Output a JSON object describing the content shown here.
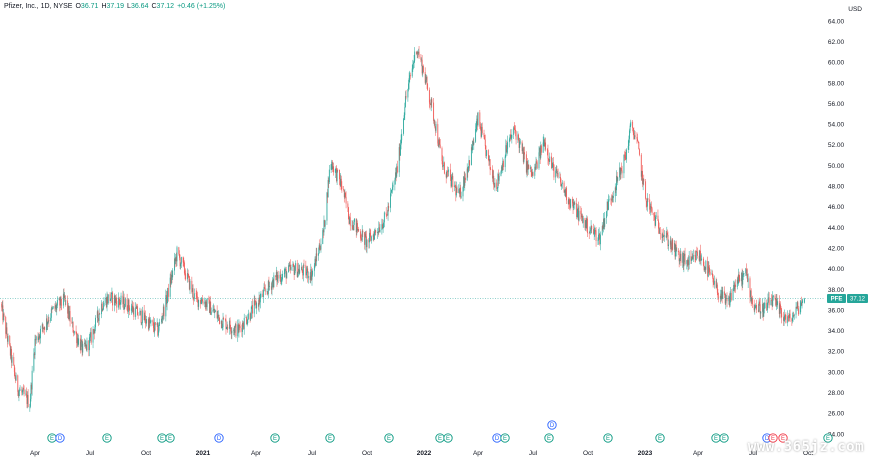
{
  "header": {
    "symbol_line": "Pfizer, Inc., 1D, NYSE",
    "o_label": "O",
    "o_value": "36.71",
    "h_label": "H",
    "h_value": "37.19",
    "l_label": "L",
    "l_value": "36.64",
    "c_label": "C",
    "c_value": "37.12",
    "change": "+0.46 (+1.25%)"
  },
  "price_axis": {
    "currency": "USD",
    "ticks": [
      "64.00",
      "62.00",
      "60.00",
      "58.00",
      "56.00",
      "54.00",
      "52.00",
      "50.00",
      "48.00",
      "46.00",
      "44.00",
      "42.00",
      "40.00",
      "38.00",
      "36.00",
      "34.00",
      "32.00",
      "30.00",
      "28.00",
      "26.00",
      "24.00"
    ]
  },
  "time_axis": {
    "ticks": [
      "Apr",
      "Jul",
      "Oct",
      "2021",
      "Apr",
      "Jul",
      "Oct",
      "2022",
      "Apr",
      "Jul",
      "Oct",
      "2023",
      "Apr",
      "Jul",
      "Oct"
    ]
  },
  "last_price": {
    "symbol": "PFE",
    "value": "37.12"
  },
  "events": [
    {
      "label": "E"
    },
    {
      "label": "D"
    },
    {
      "label": "E"
    },
    {
      "label": "E"
    },
    {
      "label": "E"
    },
    {
      "label": "D"
    },
    {
      "label": "E"
    },
    {
      "label": "E"
    },
    {
      "label": "E"
    },
    {
      "label": "E"
    },
    {
      "label": "E"
    },
    {
      "label": "D"
    },
    {
      "label": "E"
    },
    {
      "label": "E"
    },
    {
      "label": "D"
    },
    {
      "label": "E"
    },
    {
      "label": "E"
    },
    {
      "label": "E"
    },
    {
      "label": "E"
    },
    {
      "label": "D"
    },
    {
      "label": "E"
    },
    {
      "label": "E"
    },
    {
      "label": "E"
    }
  ],
  "watermark": "www.365jz.com",
  "colors": {
    "up": "#26a69a",
    "down": "#ef5350",
    "dividend": "#2962ff",
    "earnings": "#089981",
    "earnings_red": "#f23645",
    "split": "#e040fb"
  },
  "chart_data": {
    "type": "candlestick",
    "title": "Pfizer, Inc., 1D, NYSE",
    "ylim": [
      24,
      64
    ],
    "ylabel": "USD",
    "x_ticks": [
      "Apr",
      "Jul",
      "Oct",
      "2021",
      "Apr",
      "Jul",
      "Oct",
      "2022",
      "Apr",
      "Jul",
      "Oct",
      "2023",
      "Apr",
      "Jul",
      "Oct"
    ],
    "series": [
      {
        "name": "PFE",
        "close_path_approx": [
          [
            "2020-02",
            36.6
          ],
          [
            "2020-03",
            28.5
          ],
          [
            "2020-03-23",
            27.0
          ],
          [
            "2020-04",
            33.0
          ],
          [
            "2020-05",
            36.0
          ],
          [
            "2020-05-20",
            37.0
          ],
          [
            "2020-06",
            34.5
          ],
          [
            "2020-06-20",
            32.0
          ],
          [
            "2020-07",
            33.0
          ],
          [
            "2020-07-20",
            36.5
          ],
          [
            "2020-08",
            37.2
          ],
          [
            "2020-09",
            36.5
          ],
          [
            "2020-10",
            35.0
          ],
          [
            "2020-10-20",
            34.0
          ],
          [
            "2020-11",
            36.5
          ],
          [
            "2020-11-20",
            41.5
          ],
          [
            "2020-12",
            40.0
          ],
          [
            "2020-12-20",
            37.0
          ],
          [
            "2021-01",
            37.0
          ],
          [
            "2021-02",
            35.0
          ],
          [
            "2021-03",
            34.0
          ],
          [
            "2021-04",
            36.5
          ],
          [
            "2021-05",
            39.0
          ],
          [
            "2021-06",
            40.0
          ],
          [
            "2021-07",
            39.5
          ],
          [
            "2021-07-20",
            43.5
          ],
          [
            "2021-08",
            50.5
          ],
          [
            "2021-08-20",
            48.0
          ],
          [
            "2021-09",
            45.0
          ],
          [
            "2021-10",
            42.5
          ],
          [
            "2021-11",
            45.0
          ],
          [
            "2021-11-20",
            50.0
          ],
          [
            "2021-12",
            56.0
          ],
          [
            "2021-12-20",
            61.5
          ],
          [
            "2022-01",
            59.0
          ],
          [
            "2022-01-20",
            54.0
          ],
          [
            "2022-02",
            50.0
          ],
          [
            "2022-03",
            47.0
          ],
          [
            "2022-03-20",
            51.0
          ],
          [
            "2022-04",
            54.5
          ],
          [
            "2022-04-20",
            50.0
          ],
          [
            "2022-05",
            48.0
          ],
          [
            "2022-05-20",
            52.0
          ],
          [
            "2022-06",
            53.5
          ],
          [
            "2022-06-20",
            50.0
          ],
          [
            "2022-07",
            49.0
          ],
          [
            "2022-07-20",
            52.5
          ],
          [
            "2022-08",
            50.0
          ],
          [
            "2022-09",
            46.5
          ],
          [
            "2022-10",
            44.0
          ],
          [
            "2022-10-20",
            43.0
          ],
          [
            "2022-11",
            46.0
          ],
          [
            "2022-11-20",
            49.0
          ],
          [
            "2022-12",
            51.0
          ],
          [
            "2022-12-10",
            54.0
          ],
          [
            "2022-12-20",
            52.0
          ],
          [
            "2023-01",
            47.0
          ],
          [
            "2023-01-20",
            44.5
          ],
          [
            "2023-02",
            43.5
          ],
          [
            "2023-03",
            41.0
          ],
          [
            "2023-03-20",
            40.5
          ],
          [
            "2023-04",
            41.5
          ],
          [
            "2023-04-20",
            39.5
          ],
          [
            "2023-05",
            38.0
          ],
          [
            "2023-05-20",
            36.5
          ],
          [
            "2023-06",
            38.5
          ],
          [
            "2023-06-20",
            39.5
          ],
          [
            "2023-07",
            36.5
          ],
          [
            "2023-07-20",
            36.0
          ],
          [
            "2023-08",
            37.0
          ],
          [
            "2023-08-20",
            35.5
          ],
          [
            "2023-09",
            35.0
          ],
          [
            "2023-09-20",
            36.71
          ],
          [
            "2023-09-25",
            37.12
          ]
        ],
        "last": {
          "open": 36.71,
          "high": 37.19,
          "low": 36.64,
          "close": 37.12,
          "change": 0.46,
          "change_pct": 1.25
        }
      }
    ]
  }
}
